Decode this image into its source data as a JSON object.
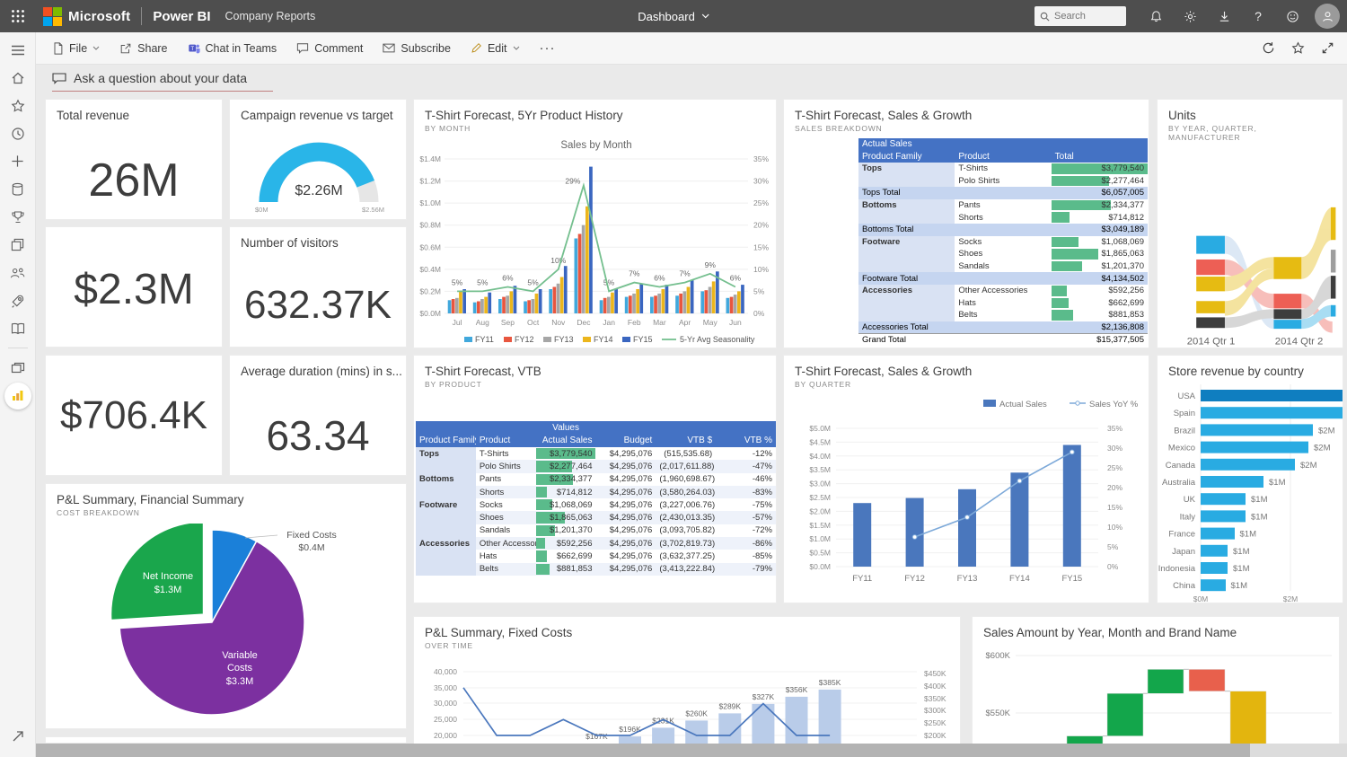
{
  "topbar": {
    "brand": "Microsoft",
    "product": "Power BI",
    "workspace": "Company Reports",
    "center_menu": "Dashboard",
    "search_placeholder": "Search"
  },
  "toolbar": {
    "file": "File",
    "share": "Share",
    "teams": "Chat in Teams",
    "comment": "Comment",
    "subscribe": "Subscribe",
    "edit": "Edit",
    "more": "···"
  },
  "sidebar": {
    "icons": [
      "menu-icon",
      "home-icon",
      "favorites-star-icon",
      "recent-clock-icon",
      "create-plus-icon",
      "datasets-icon",
      "goals-trophy-icon",
      "apps-icon",
      "shared-people-icon",
      "deployment-rocket-icon",
      "learn-book-icon",
      "workspaces-icon",
      "company-dashboard-icon",
      "expand-arrow-icon"
    ]
  },
  "qa": {
    "prompt": "Ask a question about your data"
  },
  "cards": {
    "total_revenue": {
      "title": "Total revenue",
      "value": "26M"
    },
    "campaign": {
      "title": "Campaign revenue vs target"
    },
    "revenue_23m": {
      "value": "$2.3M"
    },
    "visitors": {
      "title": "Number of visitors",
      "value": "632.37K"
    },
    "revenue_706k": {
      "value": "$706.4K"
    },
    "duration": {
      "title": "Average duration (mins) in s...",
      "value": "63.34"
    },
    "pnl_pie": {
      "title": "P&L Summary, Financial Summary",
      "subtitle": "COST BREAKDOWN"
    },
    "sales_by_month": {
      "title": "T-Shirt Forecast, 5Yr Product History",
      "subtitle": "BY MONTH"
    },
    "breakdown": {
      "title": "T-Shirt Forecast, Sales & Growth",
      "subtitle": "SALES BREAKDOWN"
    },
    "units": {
      "title": "Units",
      "subtitle": "BY YEAR, QUARTER, MANUFACTURER"
    },
    "vtb": {
      "title": "T-Shirt Forecast, VTB",
      "subtitle": "BY PRODUCT"
    },
    "quarter": {
      "title": "T-Shirt Forecast, Sales & Growth",
      "subtitle": "BY QUARTER"
    },
    "store": {
      "title": "Store revenue by country"
    },
    "fixed_costs": {
      "title": "P&L Summary, Fixed Costs",
      "subtitle": "OVER TIME"
    },
    "waterfall": {
      "title": "Sales Amount by Year, Month and Brand Name"
    }
  },
  "chart_data": {
    "gauge": {
      "type": "gauge",
      "value": 2.26,
      "min": 0,
      "max": 2.56,
      "value_label": "$2.26M",
      "min_label": "$0M",
      "max_label": "$2.56M",
      "color": "#29b5e8",
      "track_color": "#e6e6e6"
    },
    "sales_by_month": {
      "type": "bar+line",
      "title": "Sales by Month",
      "categories": [
        "Jul",
        "Aug",
        "Sep",
        "Oct",
        "Nov",
        "Dec",
        "Jan",
        "Feb",
        "Mar",
        "Apr",
        "May",
        "Jun"
      ],
      "series": [
        {
          "name": "FY11",
          "color": "#41a8dc",
          "values": [
            0.12,
            0.1,
            0.13,
            0.11,
            0.22,
            0.68,
            0.12,
            0.15,
            0.15,
            0.16,
            0.2,
            0.14
          ]
        },
        {
          "name": "FY12",
          "color": "#e8563f",
          "values": [
            0.13,
            0.11,
            0.15,
            0.12,
            0.24,
            0.72,
            0.14,
            0.16,
            0.16,
            0.18,
            0.21,
            0.15
          ]
        },
        {
          "name": "FY13",
          "color": "#a6a6a6",
          "values": [
            0.14,
            0.13,
            0.16,
            0.13,
            0.27,
            0.8,
            0.15,
            0.18,
            0.18,
            0.2,
            0.24,
            0.17
          ]
        },
        {
          "name": "FY14",
          "color": "#ecb61c",
          "values": [
            0.2,
            0.15,
            0.2,
            0.18,
            0.33,
            0.97,
            0.19,
            0.22,
            0.22,
            0.24,
            0.29,
            0.2
          ]
        },
        {
          "name": "FY15",
          "color": "#3a66c0",
          "values": [
            0.22,
            0.19,
            0.25,
            0.22,
            0.43,
            1.33,
            0.22,
            0.27,
            0.26,
            0.3,
            0.38,
            0.26
          ]
        }
      ],
      "line": {
        "name": "5-Yr Avg Seasonality",
        "color": "#74bf8e",
        "values": [
          5,
          5,
          6,
          5,
          10,
          29,
          5,
          7,
          6,
          7,
          9,
          6
        ]
      },
      "left_ticks": [
        "$0.0M",
        "$0.2M",
        "$0.4M",
        "$0.6M",
        "$0.8M",
        "$1.0M",
        "$1.2M",
        "$1.4M"
      ],
      "right_ticks": [
        "0%",
        "5%",
        "10%",
        "15%",
        "20%",
        "25%",
        "30%",
        "35%"
      ],
      "ylim_left": [
        0,
        1.4
      ],
      "ylim_right": [
        0,
        35
      ]
    },
    "sales_breakdown": {
      "type": "table",
      "group_header": "Actual Sales",
      "columns": [
        "Product Family",
        "Product",
        "Total"
      ],
      "rows": [
        {
          "family": "Tops",
          "product": "T-Shirts",
          "total": "$3,779,540",
          "bar": 1.0
        },
        {
          "family": "",
          "product": "Polo Shirts",
          "total": "$2,277,464",
          "bar": 0.6
        },
        {
          "kind": "total",
          "family": "Tops Total",
          "total": "$6,057,005"
        },
        {
          "family": "Bottoms",
          "product": "Pants",
          "total": "$2,334,377",
          "bar": 0.62
        },
        {
          "family": "",
          "product": "Shorts",
          "total": "$714,812",
          "bar": 0.19
        },
        {
          "kind": "total",
          "family": "Bottoms Total",
          "total": "$3,049,189"
        },
        {
          "family": "Footware",
          "product": "Socks",
          "total": "$1,068,069",
          "bar": 0.28
        },
        {
          "family": "",
          "product": "Shoes",
          "total": "$1,865,063",
          "bar": 0.49
        },
        {
          "family": "",
          "product": "Sandals",
          "total": "$1,201,370",
          "bar": 0.32
        },
        {
          "kind": "total",
          "family": "Footware Total",
          "total": "$4,134,502"
        },
        {
          "family": "Accessories",
          "product": "Other Accessories",
          "total": "$592,256",
          "bar": 0.16
        },
        {
          "family": "",
          "product": "Hats",
          "total": "$662,699",
          "bar": 0.18
        },
        {
          "family": "",
          "product": "Belts",
          "total": "$881,853",
          "bar": 0.23
        },
        {
          "kind": "total",
          "family": "Accessories Total",
          "total": "$2,136,808"
        },
        {
          "kind": "grand",
          "family": "Grand Total",
          "total": "$15,377,505"
        }
      ]
    },
    "vtb": {
      "type": "table",
      "group_header": "Values",
      "columns": [
        "Product Family",
        "Product",
        "Actual Sales",
        "Budget",
        "VTB $",
        "VTB %"
      ],
      "rows": [
        {
          "family": "Tops",
          "product": "T-Shirts",
          "actual": "$3,779,540",
          "bar": 1.0,
          "budget": "$4,295,076",
          "vtb": "(515,535.68)",
          "pct": "-12%"
        },
        {
          "family": "",
          "product": "Polo Shirts",
          "actual": "$2,277,464",
          "bar": 0.6,
          "budget": "$4,295,076",
          "vtb": "(2,017,611.88)",
          "pct": "-47%"
        },
        {
          "family": "Bottoms",
          "product": "Pants",
          "actual": "$2,334,377",
          "bar": 0.62,
          "budget": "$4,295,076",
          "vtb": "(1,960,698.67)",
          "pct": "-46%"
        },
        {
          "family": "",
          "product": "Shorts",
          "actual": "$714,812",
          "bar": 0.19,
          "budget": "$4,295,076",
          "vtb": "(3,580,264.03)",
          "pct": "-83%"
        },
        {
          "family": "Footware",
          "product": "Socks",
          "actual": "$1,068,069",
          "bar": 0.28,
          "budget": "$4,295,076",
          "vtb": "(3,227,006.76)",
          "pct": "-75%"
        },
        {
          "family": "",
          "product": "Shoes",
          "actual": "$1,865,063",
          "bar": 0.49,
          "budget": "$4,295,076",
          "vtb": "(2,430,013.35)",
          "pct": "-57%"
        },
        {
          "family": "",
          "product": "Sandals",
          "actual": "$1,201,370",
          "bar": 0.32,
          "budget": "$4,295,076",
          "vtb": "(3,093,705.82)",
          "pct": "-72%"
        },
        {
          "family": "Accessories",
          "product": "Other Accessories",
          "actual": "$592,256",
          "bar": 0.16,
          "budget": "$4,295,076",
          "vtb": "(3,702,819.73)",
          "pct": "-86%"
        },
        {
          "family": "",
          "product": "Hats",
          "actual": "$662,699",
          "bar": 0.18,
          "budget": "$4,295,076",
          "vtb": "(3,632,377.25)",
          "pct": "-85%"
        },
        {
          "family": "",
          "product": "Belts",
          "actual": "$881,853",
          "bar": 0.23,
          "budget": "$4,295,076",
          "vtb": "(3,413,222.84)",
          "pct": "-79%"
        }
      ]
    },
    "quarter": {
      "type": "bar+line",
      "categories": [
        "FY11",
        "FY12",
        "FY13",
        "FY14",
        "FY15"
      ],
      "bars": {
        "name": "Actual Sales",
        "color": "#4a77bd",
        "values": [
          2.3,
          2.48,
          2.8,
          3.4,
          4.4
        ]
      },
      "line": {
        "name": "Sales YoY %",
        "color": "#7da9d9",
        "values": [
          null,
          7.5,
          12.5,
          21.7,
          29
        ]
      },
      "left_ticks": [
        "$0.0M",
        "$0.5M",
        "$1.0M",
        "$1.5M",
        "$2.0M",
        "$2.5M",
        "$3.0M",
        "$3.5M",
        "$4.0M",
        "$4.5M",
        "$5.0M"
      ],
      "right_ticks": [
        "0%",
        "5%",
        "10%",
        "15%",
        "20%",
        "25%",
        "30%",
        "35%"
      ],
      "ylim_left": [
        0,
        5
      ],
      "ylim_right": [
        0,
        35
      ]
    },
    "store": {
      "type": "bar-horizontal",
      "categories": [
        "USA",
        "Spain",
        "Brazil",
        "Mexico",
        "Canada",
        "Australia",
        "UK",
        "Italy",
        "France",
        "Japan",
        "Indonesia",
        "China"
      ],
      "values": [
        3.3,
        3.2,
        2.5,
        2.4,
        2.1,
        1.4,
        1.0,
        1.0,
        0.75,
        0.6,
        0.6,
        0.55
      ],
      "labels": [
        "",
        "",
        "$2M",
        "$2M",
        "$2M",
        "$1M",
        "$1M",
        "$1M",
        "$1M",
        "$1M",
        "$1M",
        "$1M"
      ],
      "x_ticks": [
        "$0M",
        "$2M"
      ],
      "bar_color": "#29abe2",
      "first_bar_color": "#0f7ec0"
    },
    "pnl_pie": {
      "type": "pie",
      "slices": [
        {
          "label": "Fixed Costs",
          "value_label": "$0.4M",
          "value": 0.4,
          "color": "#1b80d9"
        },
        {
          "label": "Variable Costs",
          "value_label": "$3.3M",
          "value": 3.3,
          "color": "#7c30a0"
        },
        {
          "label": "Net Income",
          "value_label": "$1.3M",
          "value": 1.3,
          "color": "#1aa64c",
          "exploded": true
        }
      ]
    },
    "fixed_costs": {
      "type": "line+bar",
      "line_values": [
        35000,
        20000,
        20000,
        25000,
        20000,
        20000,
        25000,
        20000,
        20000,
        30000,
        20000,
        20000
      ],
      "bar_values": [
        167,
        196,
        231,
        260,
        289,
        327,
        356,
        385
      ],
      "bar_labels": [
        "$167K",
        "$196K",
        "$231K",
        "$260K",
        "$289K",
        "$327K",
        "$356K",
        "$385K"
      ],
      "bar_start_index": 4,
      "left_ticks": [
        "40,000",
        "35,000",
        "30,000",
        "25,000",
        "20,000"
      ],
      "right_ticks": [
        "$450K",
        "$400K",
        "$350K",
        "$300K",
        "$250K",
        "$200K"
      ],
      "line_color": "#4a77bd",
      "bar_color": "#b9cce9"
    },
    "waterfall": {
      "type": "waterfall",
      "y_ticks": [
        "$600K",
        "$550K"
      ],
      "steps": [
        {
          "from": 521,
          "to": 530,
          "kind": "increase"
        },
        {
          "from": 530,
          "to": 567,
          "kind": "increase"
        },
        {
          "from": 567,
          "to": 588,
          "kind": "increase"
        },
        {
          "from": 588,
          "to": 569,
          "kind": "decrease"
        },
        {
          "from": 569,
          "to": 510,
          "kind": "total"
        }
      ],
      "colors": {
        "increase": "#13a64b",
        "decrease": "#e8604c",
        "total": "#e3b50e"
      }
    },
    "units_ribbon": {
      "type": "ribbon",
      "x_labels": [
        "2014 Qtr 1",
        "2014 Qtr 2"
      ],
      "colors": [
        "#29abe2",
        "#ed5f55",
        "#e6bb12",
        "#3d3d3d",
        "#9e9e9e"
      ]
    }
  }
}
